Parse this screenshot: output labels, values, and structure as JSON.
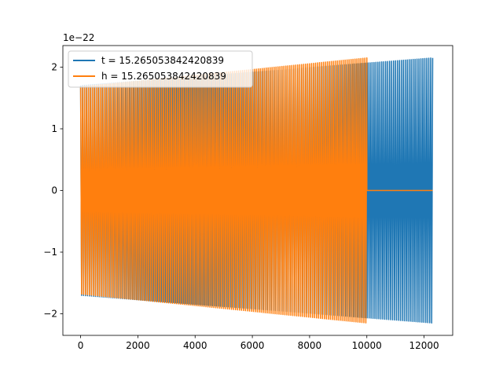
{
  "chart_data": {
    "type": "line",
    "title": "",
    "xlabel": "",
    "ylabel": "",
    "xlim": [
      -620,
      13000
    ],
    "ylim": [
      -2.35,
      2.35
    ],
    "x_ticks": [
      0,
      2000,
      4000,
      6000,
      8000,
      10000,
      12000
    ],
    "x_tick_labels": [
      "0",
      "2000",
      "4000",
      "6000",
      "8000",
      "10000",
      "12000"
    ],
    "y_ticks": [
      -2,
      -1,
      0,
      1,
      2
    ],
    "y_tick_labels": [
      "−2",
      "−1",
      "0",
      "1",
      "2"
    ],
    "y_offset_label": "1e−22",
    "grid": false,
    "legend_position": "upper left",
    "series": [
      {
        "name": "t = 15.265053842420839",
        "color": "#1f77b4",
        "x_range": [
          0,
          12300
        ],
        "envelope_start": 1.7,
        "envelope_end": 2.15,
        "oscillation_cycles": 180
      },
      {
        "name": "h = 15.265053842420839",
        "color": "#ff7f0e",
        "x_range": [
          0,
          12300
        ],
        "signal_end_x": 10000,
        "envelope_start": 1.68,
        "envelope_end": 2.15,
        "zero_from_x": 10000,
        "oscillation_cycles": 145
      }
    ]
  }
}
